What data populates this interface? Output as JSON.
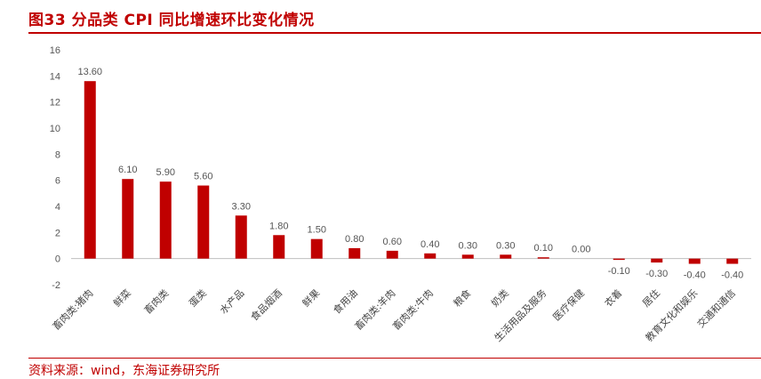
{
  "title": "图33  分品类 CPI 同比增速环比变化情况",
  "source": "资料来源：wind，东海证券研究所",
  "colors": {
    "accent": "#c00000",
    "bar": "#c00000"
  },
  "chart_data": {
    "type": "bar",
    "categories": [
      "畜肉类:猪肉",
      "鲜菜",
      "畜肉类",
      "蛋类",
      "水产品",
      "食品烟酒",
      "鲜果",
      "食用油",
      "畜肉类:羊肉",
      "畜肉类:牛肉",
      "粮食",
      "奶类",
      "生活用品及服务",
      "医疗保健",
      "衣着",
      "居住",
      "教育文化和娱乐",
      "交通和通信"
    ],
    "values": [
      13.6,
      6.1,
      5.9,
      5.6,
      3.3,
      1.8,
      1.5,
      0.8,
      0.6,
      0.4,
      0.3,
      0.3,
      0.1,
      0.0,
      -0.1,
      -0.3,
      -0.4,
      -0.4
    ],
    "value_labels": [
      "13.60",
      "6.10",
      "5.90",
      "5.60",
      "3.30",
      "1.80",
      "1.50",
      "0.80",
      "0.60",
      "0.40",
      "0.30",
      "0.30",
      "0.10",
      "0.00",
      "-0.10",
      "-0.30",
      "-0.40",
      "-0.40"
    ],
    "yticks": [
      "16",
      "14",
      "12",
      "10",
      "8",
      "6",
      "4",
      "2",
      "0",
      "-2"
    ],
    "ylim": [
      -2,
      16
    ],
    "xlabel": "",
    "ylabel": "",
    "grid": false,
    "legend": "none"
  }
}
